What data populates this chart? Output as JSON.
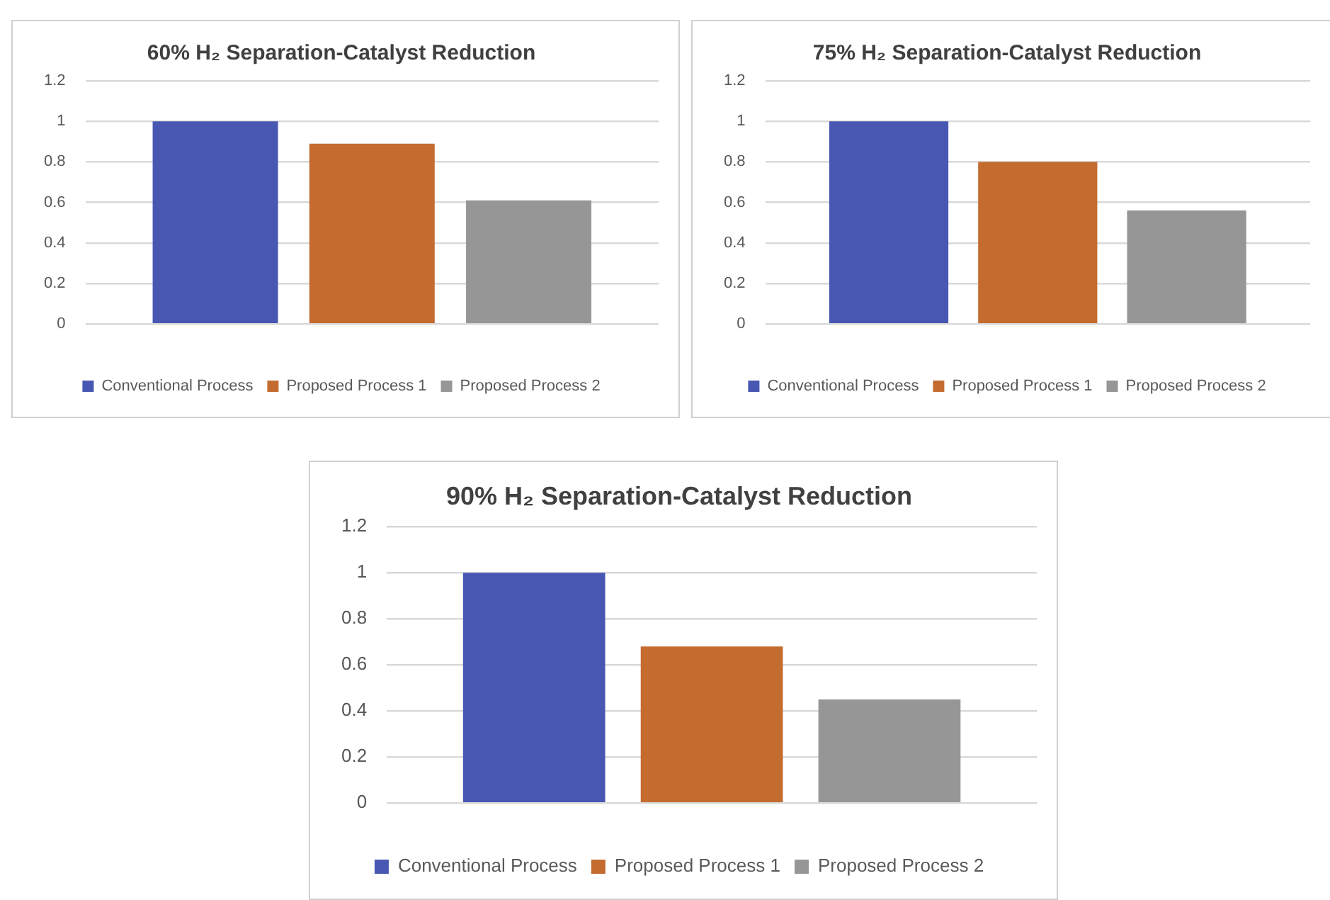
{
  "chart_data": [
    {
      "type": "bar",
      "title": "60% H₂ Separation-Catalyst Reduction",
      "categories": [
        null
      ],
      "series": [
        {
          "name": "Conventional Process",
          "color": "#4858b2",
          "values": [
            1
          ]
        },
        {
          "name": "Proposed Process 1",
          "color": "#c46c30",
          "values": [
            0.89
          ]
        },
        {
          "name": "Proposed Process 2",
          "color": "#969696",
          "values": [
            0.61
          ]
        }
      ],
      "ylim": [
        0,
        1.2
      ],
      "yticks": [
        0,
        0.2,
        0.4,
        0.6,
        0.8,
        1,
        1.2
      ],
      "grid": "y",
      "legend": "bottom"
    },
    {
      "type": "bar",
      "title": "75% H₂ Separation-Catalyst Reduction",
      "categories": [
        null
      ],
      "series": [
        {
          "name": "Conventional Process",
          "color": "#4858b2",
          "values": [
            1
          ]
        },
        {
          "name": "Proposed Process 1",
          "color": "#c46c30",
          "values": [
            0.8
          ]
        },
        {
          "name": "Proposed Process 2",
          "color": "#969696",
          "values": [
            0.56
          ]
        }
      ],
      "ylim": [
        0,
        1.2
      ],
      "yticks": [
        0,
        0.2,
        0.4,
        0.6,
        0.8,
        1,
        1.2
      ],
      "grid": "y",
      "legend": "bottom"
    },
    {
      "type": "bar",
      "title": "90% H₂ Separation-Catalyst Reduction",
      "categories": [
        null
      ],
      "series": [
        {
          "name": "Conventional Process",
          "color": "#4858b2",
          "values": [
            1
          ]
        },
        {
          "name": "Proposed Process 1",
          "color": "#c46c30",
          "values": [
            0.68
          ]
        },
        {
          "name": "Proposed Process 2",
          "color": "#969696",
          "values": [
            0.45
          ]
        }
      ],
      "ylim": [
        0,
        1.2
      ],
      "yticks": [
        0,
        0.2,
        0.4,
        0.6,
        0.8,
        1,
        1.2
      ],
      "grid": "y",
      "legend": "bottom"
    }
  ]
}
